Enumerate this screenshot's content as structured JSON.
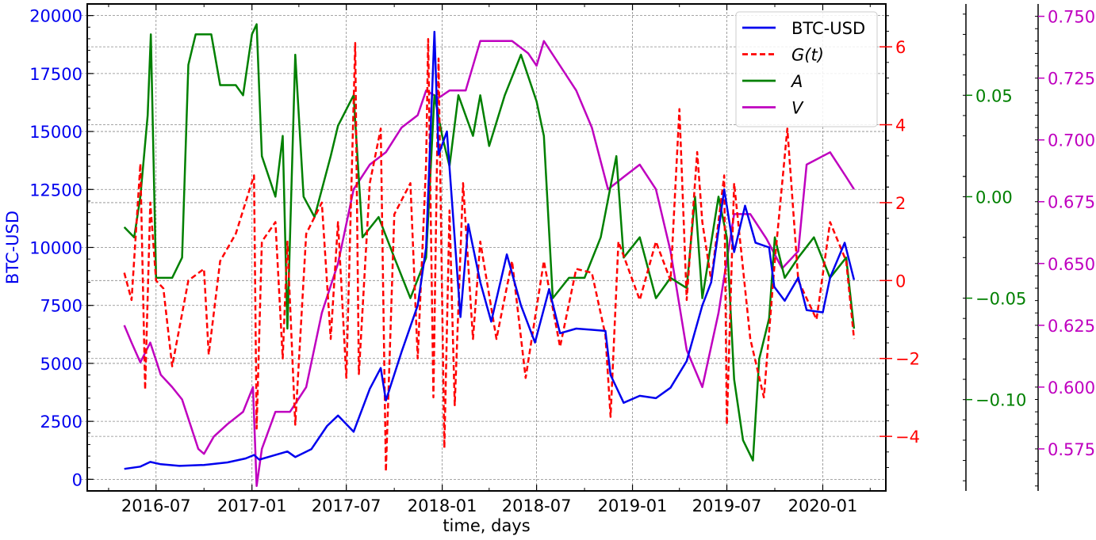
{
  "chart_data": {
    "type": "line",
    "xlabel": "time, days",
    "x_ticks": [
      "2016-07",
      "2017-01",
      "2017-07",
      "2018-01",
      "2018-07",
      "2019-01",
      "2019-07",
      "2020-01"
    ],
    "xlim": [
      "2016-02-20",
      "2020-05-01"
    ],
    "grid": true,
    "legend_position": "top-right",
    "colors": {
      "btc": "#0000ee",
      "g": "#ff0000",
      "a": "#008000",
      "v": "#bf00bf"
    },
    "axes": [
      {
        "id": "btc",
        "label": "BTC-USD",
        "ylim": [
          -500,
          20500
        ],
        "ticks": [
          "0",
          "2500",
          "5000",
          "7500",
          "10000",
          "12500",
          "15000",
          "17500",
          "20000"
        ],
        "color": "#0000ee"
      },
      {
        "id": "g",
        "label": "",
        "ylim": [
          -5.4,
          7.1
        ],
        "ticks": [
          "−4",
          "−2",
          "0",
          "2",
          "4",
          "6"
        ],
        "color": "#ff0000"
      },
      {
        "id": "a",
        "label": "",
        "ylim": [
          -0.145,
          0.095
        ],
        "ticks": [
          "−0.10",
          "−0.05",
          "0.00",
          "0.05"
        ],
        "color": "#008000"
      },
      {
        "id": "v",
        "label": "",
        "ylim": [
          0.558,
          0.755
        ],
        "ticks": [
          "0.575",
          "0.600",
          "0.625",
          "0.650",
          "0.675",
          "0.700",
          "0.725",
          "0.750"
        ],
        "color": "#bf00bf"
      }
    ],
    "series": [
      {
        "name": "BTC-USD",
        "axis": "btc",
        "style": "solid",
        "points": [
          [
            "2016-05-01",
            450
          ],
          [
            "2016-06-01",
            550
          ],
          [
            "2016-06-20",
            750
          ],
          [
            "2016-07-10",
            650
          ],
          [
            "2016-08-15",
            580
          ],
          [
            "2016-10-01",
            620
          ],
          [
            "2016-11-15",
            730
          ],
          [
            "2016-12-20",
            900
          ],
          [
            "2017-01-05",
            1050
          ],
          [
            "2017-01-15",
            850
          ],
          [
            "2017-02-15",
            1050
          ],
          [
            "2017-03-10",
            1200
          ],
          [
            "2017-03-25",
            960
          ],
          [
            "2017-04-25",
            1300
          ],
          [
            "2017-05-25",
            2300
          ],
          [
            "2017-06-15",
            2750
          ],
          [
            "2017-07-15",
            2050
          ],
          [
            "2017-08-15",
            3900
          ],
          [
            "2017-09-05",
            4800
          ],
          [
            "2017-09-15",
            3400
          ],
          [
            "2017-10-15",
            5500
          ],
          [
            "2017-11-15",
            7500
          ],
          [
            "2017-12-01",
            10000
          ],
          [
            "2017-12-17",
            19300
          ],
          [
            "2017-12-25",
            14000
          ],
          [
            "2018-01-10",
            15000
          ],
          [
            "2018-02-05",
            7000
          ],
          [
            "2018-02-20",
            11000
          ],
          [
            "2018-03-15",
            8500
          ],
          [
            "2018-04-05",
            6800
          ],
          [
            "2018-05-05",
            9700
          ],
          [
            "2018-06-01",
            7500
          ],
          [
            "2018-06-28",
            5900
          ],
          [
            "2018-07-25",
            8200
          ],
          [
            "2018-08-15",
            6300
          ],
          [
            "2018-09-15",
            6500
          ],
          [
            "2018-10-15",
            6450
          ],
          [
            "2018-11-10",
            6400
          ],
          [
            "2018-11-20",
            4500
          ],
          [
            "2018-12-15",
            3300
          ],
          [
            "2019-01-15",
            3600
          ],
          [
            "2019-02-15",
            3500
          ],
          [
            "2019-03-15",
            3950
          ],
          [
            "2019-04-15",
            5100
          ],
          [
            "2019-05-15",
            7500
          ],
          [
            "2019-06-01",
            8500
          ],
          [
            "2019-06-26",
            12500
          ],
          [
            "2019-07-15",
            9800
          ],
          [
            "2019-08-05",
            11800
          ],
          [
            "2019-08-25",
            10200
          ],
          [
            "2019-09-20",
            10000
          ],
          [
            "2019-09-30",
            8300
          ],
          [
            "2019-10-20",
            7700
          ],
          [
            "2019-11-15",
            8700
          ],
          [
            "2019-12-01",
            7300
          ],
          [
            "2020-01-01",
            7200
          ],
          [
            "2020-01-15",
            8700
          ],
          [
            "2020-02-12",
            10200
          ],
          [
            "2020-03-01",
            8600
          ]
        ]
      },
      {
        "name": "G(t)",
        "axis": "g",
        "style": "dashed",
        "points": [
          [
            "2016-05-01",
            0.2
          ],
          [
            "2016-05-15",
            -0.5
          ],
          [
            "2016-06-01",
            3.0
          ],
          [
            "2016-06-10",
            -2.8
          ],
          [
            "2016-06-20",
            2.0
          ],
          [
            "2016-07-01",
            0.0
          ],
          [
            "2016-07-15",
            -0.2
          ],
          [
            "2016-08-01",
            -2.2
          ],
          [
            "2016-09-01",
            0.0
          ],
          [
            "2016-10-01",
            0.3
          ],
          [
            "2016-10-10",
            -1.9
          ],
          [
            "2016-11-01",
            0.5
          ],
          [
            "2016-12-01",
            1.2
          ],
          [
            "2017-01-05",
            2.7
          ],
          [
            "2017-01-10",
            -3.8
          ],
          [
            "2017-01-20",
            1.0
          ],
          [
            "2017-02-15",
            1.5
          ],
          [
            "2017-03-01",
            -2.0
          ],
          [
            "2017-03-10",
            1.0
          ],
          [
            "2017-03-25",
            -3.7
          ],
          [
            "2017-04-15",
            1.2
          ],
          [
            "2017-05-15",
            2.0
          ],
          [
            "2017-06-01",
            -1.5
          ],
          [
            "2017-06-15",
            1.5
          ],
          [
            "2017-07-01",
            -2.5
          ],
          [
            "2017-07-18",
            6.1
          ],
          [
            "2017-07-25",
            -2.4
          ],
          [
            "2017-08-15",
            2.5
          ],
          [
            "2017-09-05",
            3.9
          ],
          [
            "2017-09-15",
            -4.9
          ],
          [
            "2017-10-01",
            1.7
          ],
          [
            "2017-11-01",
            2.5
          ],
          [
            "2017-11-15",
            -2.0
          ],
          [
            "2017-12-01",
            3.0
          ],
          [
            "2017-12-05",
            6.2
          ],
          [
            "2017-12-15",
            -3.0
          ],
          [
            "2017-12-25",
            5.7
          ],
          [
            "2018-01-05",
            -4.3
          ],
          [
            "2018-01-15",
            1.8
          ],
          [
            "2018-01-25",
            -3.2
          ],
          [
            "2018-02-10",
            2.5
          ],
          [
            "2018-03-01",
            -1.5
          ],
          [
            "2018-03-15",
            1.0
          ],
          [
            "2018-04-15",
            -1.5
          ],
          [
            "2018-05-15",
            0.5
          ],
          [
            "2018-06-10",
            -2.5
          ],
          [
            "2018-07-15",
            0.5
          ],
          [
            "2018-08-15",
            -1.7
          ],
          [
            "2018-09-15",
            0.3
          ],
          [
            "2018-10-15",
            0.2
          ],
          [
            "2018-11-10",
            -1.4
          ],
          [
            "2018-11-20",
            -3.5
          ],
          [
            "2018-12-05",
            1.0
          ],
          [
            "2019-01-15",
            -0.5
          ],
          [
            "2019-02-15",
            1.0
          ],
          [
            "2019-03-15",
            0.0
          ],
          [
            "2019-04-01",
            4.4
          ],
          [
            "2019-04-15",
            -0.5
          ],
          [
            "2019-05-05",
            3.3
          ],
          [
            "2019-05-15",
            1.5
          ],
          [
            "2019-06-01",
            0.0
          ],
          [
            "2019-06-26",
            2.7
          ],
          [
            "2019-07-01",
            -3.7
          ],
          [
            "2019-07-15",
            2.5
          ],
          [
            "2019-08-15",
            -1.5
          ],
          [
            "2019-09-10",
            -3.0
          ],
          [
            "2019-10-01",
            0.5
          ],
          [
            "2019-10-25",
            3.9
          ],
          [
            "2019-11-15",
            0.0
          ],
          [
            "2019-12-20",
            -1.0
          ],
          [
            "2020-01-15",
            1.5
          ],
          [
            "2020-02-15",
            0.5
          ],
          [
            "2020-03-01",
            -1.5
          ]
        ]
      },
      {
        "name": "A",
        "axis": "a",
        "style": "solid",
        "points": [
          [
            "2016-05-01",
            -0.015
          ],
          [
            "2016-05-20",
            -0.02
          ],
          [
            "2016-06-01",
            0.0
          ],
          [
            "2016-06-15",
            0.04
          ],
          [
            "2016-06-21",
            0.08
          ],
          [
            "2016-07-01",
            -0.04
          ],
          [
            "2016-08-01",
            -0.04
          ],
          [
            "2016-08-20",
            -0.03
          ],
          [
            "2016-09-01",
            0.065
          ],
          [
            "2016-09-15",
            0.08
          ],
          [
            "2016-10-15",
            0.08
          ],
          [
            "2016-11-01",
            0.055
          ],
          [
            "2016-12-01",
            0.055
          ],
          [
            "2016-12-15",
            0.05
          ],
          [
            "2017-01-01",
            0.08
          ],
          [
            "2017-01-10",
            0.085
          ],
          [
            "2017-01-20",
            0.02
          ],
          [
            "2017-02-15",
            0.0
          ],
          [
            "2017-03-01",
            0.03
          ],
          [
            "2017-03-10",
            -0.065
          ],
          [
            "2017-03-25",
            0.07
          ],
          [
            "2017-04-10",
            0.0
          ],
          [
            "2017-05-01",
            -0.01
          ],
          [
            "2017-06-01",
            0.02
          ],
          [
            "2017-06-15",
            0.035
          ],
          [
            "2017-07-15",
            0.05
          ],
          [
            "2017-08-01",
            -0.02
          ],
          [
            "2017-09-01",
            -0.01
          ],
          [
            "2017-10-01",
            -0.03
          ],
          [
            "2017-11-01",
            -0.05
          ],
          [
            "2017-12-01",
            -0.03
          ],
          [
            "2017-12-17",
            0.05
          ],
          [
            "2018-01-01",
            0.03
          ],
          [
            "2018-01-15",
            0.015
          ],
          [
            "2018-02-01",
            0.05
          ],
          [
            "2018-03-01",
            0.03
          ],
          [
            "2018-03-15",
            0.05
          ],
          [
            "2018-04-01",
            0.025
          ],
          [
            "2018-05-01",
            0.05
          ],
          [
            "2018-06-01",
            0.07
          ],
          [
            "2018-07-01",
            0.047
          ],
          [
            "2018-07-15",
            0.03
          ],
          [
            "2018-08-01",
            -0.05
          ],
          [
            "2018-09-01",
            -0.04
          ],
          [
            "2018-10-01",
            -0.04
          ],
          [
            "2018-11-01",
            -0.02
          ],
          [
            "2018-12-01",
            0.02
          ],
          [
            "2018-12-15",
            -0.03
          ],
          [
            "2019-01-15",
            -0.02
          ],
          [
            "2019-02-15",
            -0.05
          ],
          [
            "2019-03-15",
            -0.04
          ],
          [
            "2019-04-15",
            -0.045
          ],
          [
            "2019-05-01",
            0.0
          ],
          [
            "2019-05-15",
            -0.05
          ],
          [
            "2019-06-15",
            0.0
          ],
          [
            "2019-07-01",
            -0.02
          ],
          [
            "2019-07-15",
            -0.09
          ],
          [
            "2019-08-01",
            -0.12
          ],
          [
            "2019-08-20",
            -0.13
          ],
          [
            "2019-09-01",
            -0.08
          ],
          [
            "2019-09-20",
            -0.06
          ],
          [
            "2019-10-01",
            -0.02
          ],
          [
            "2019-10-20",
            -0.04
          ],
          [
            "2019-11-15",
            -0.03
          ],
          [
            "2019-12-15",
            -0.02
          ],
          [
            "2020-01-15",
            -0.04
          ],
          [
            "2020-02-15",
            -0.03
          ],
          [
            "2020-03-01",
            -0.065
          ]
        ]
      },
      {
        "name": "V",
        "axis": "v",
        "style": "solid",
        "points": [
          [
            "2016-05-01",
            0.625
          ],
          [
            "2016-05-15",
            0.618
          ],
          [
            "2016-06-01",
            0.61
          ],
          [
            "2016-06-20",
            0.618
          ],
          [
            "2016-07-10",
            0.605
          ],
          [
            "2016-08-01",
            0.6
          ],
          [
            "2016-08-20",
            0.595
          ],
          [
            "2016-09-20",
            0.575
          ],
          [
            "2016-10-01",
            0.573
          ],
          [
            "2016-10-20",
            0.58
          ],
          [
            "2016-11-15",
            0.585
          ],
          [
            "2016-12-15",
            0.59
          ],
          [
            "2017-01-03",
            0.6
          ],
          [
            "2017-01-10",
            0.56
          ],
          [
            "2017-01-20",
            0.575
          ],
          [
            "2017-02-15",
            0.59
          ],
          [
            "2017-03-15",
            0.59
          ],
          [
            "2017-04-15",
            0.6
          ],
          [
            "2017-05-15",
            0.63
          ],
          [
            "2017-06-15",
            0.65
          ],
          [
            "2017-07-15",
            0.68
          ],
          [
            "2017-08-15",
            0.69
          ],
          [
            "2017-09-15",
            0.695
          ],
          [
            "2017-10-15",
            0.705
          ],
          [
            "2017-11-15",
            0.71
          ],
          [
            "2017-12-01",
            0.72
          ],
          [
            "2017-12-25",
            0.717
          ],
          [
            "2018-01-15",
            0.72
          ],
          [
            "2018-02-15",
            0.72
          ],
          [
            "2018-03-15",
            0.74
          ],
          [
            "2018-04-15",
            0.74
          ],
          [
            "2018-05-15",
            0.74
          ],
          [
            "2018-06-15",
            0.735
          ],
          [
            "2018-07-01",
            0.73
          ],
          [
            "2018-07-15",
            0.74
          ],
          [
            "2018-08-15",
            0.73
          ],
          [
            "2018-09-15",
            0.72
          ],
          [
            "2018-10-15",
            0.705
          ],
          [
            "2018-11-15",
            0.68
          ],
          [
            "2018-12-15",
            0.685
          ],
          [
            "2019-01-15",
            0.69
          ],
          [
            "2019-02-15",
            0.68
          ],
          [
            "2019-03-15",
            0.655
          ],
          [
            "2019-04-15",
            0.615
          ],
          [
            "2019-05-15",
            0.6
          ],
          [
            "2019-06-15",
            0.63
          ],
          [
            "2019-07-15",
            0.67
          ],
          [
            "2019-08-15",
            0.67
          ],
          [
            "2019-09-15",
            0.66
          ],
          [
            "2019-10-15",
            0.648
          ],
          [
            "2019-11-15",
            0.655
          ],
          [
            "2019-12-01",
            0.69
          ],
          [
            "2020-01-15",
            0.695
          ],
          [
            "2020-02-15",
            0.685
          ],
          [
            "2020-03-01",
            0.68
          ]
        ]
      }
    ],
    "legend": {
      "entries": [
        {
          "key": "btc",
          "label": "BTC-USD"
        },
        {
          "key": "g",
          "label": "G(t)"
        },
        {
          "key": "a",
          "label": "A"
        },
        {
          "key": "v",
          "label": "V"
        }
      ]
    }
  }
}
